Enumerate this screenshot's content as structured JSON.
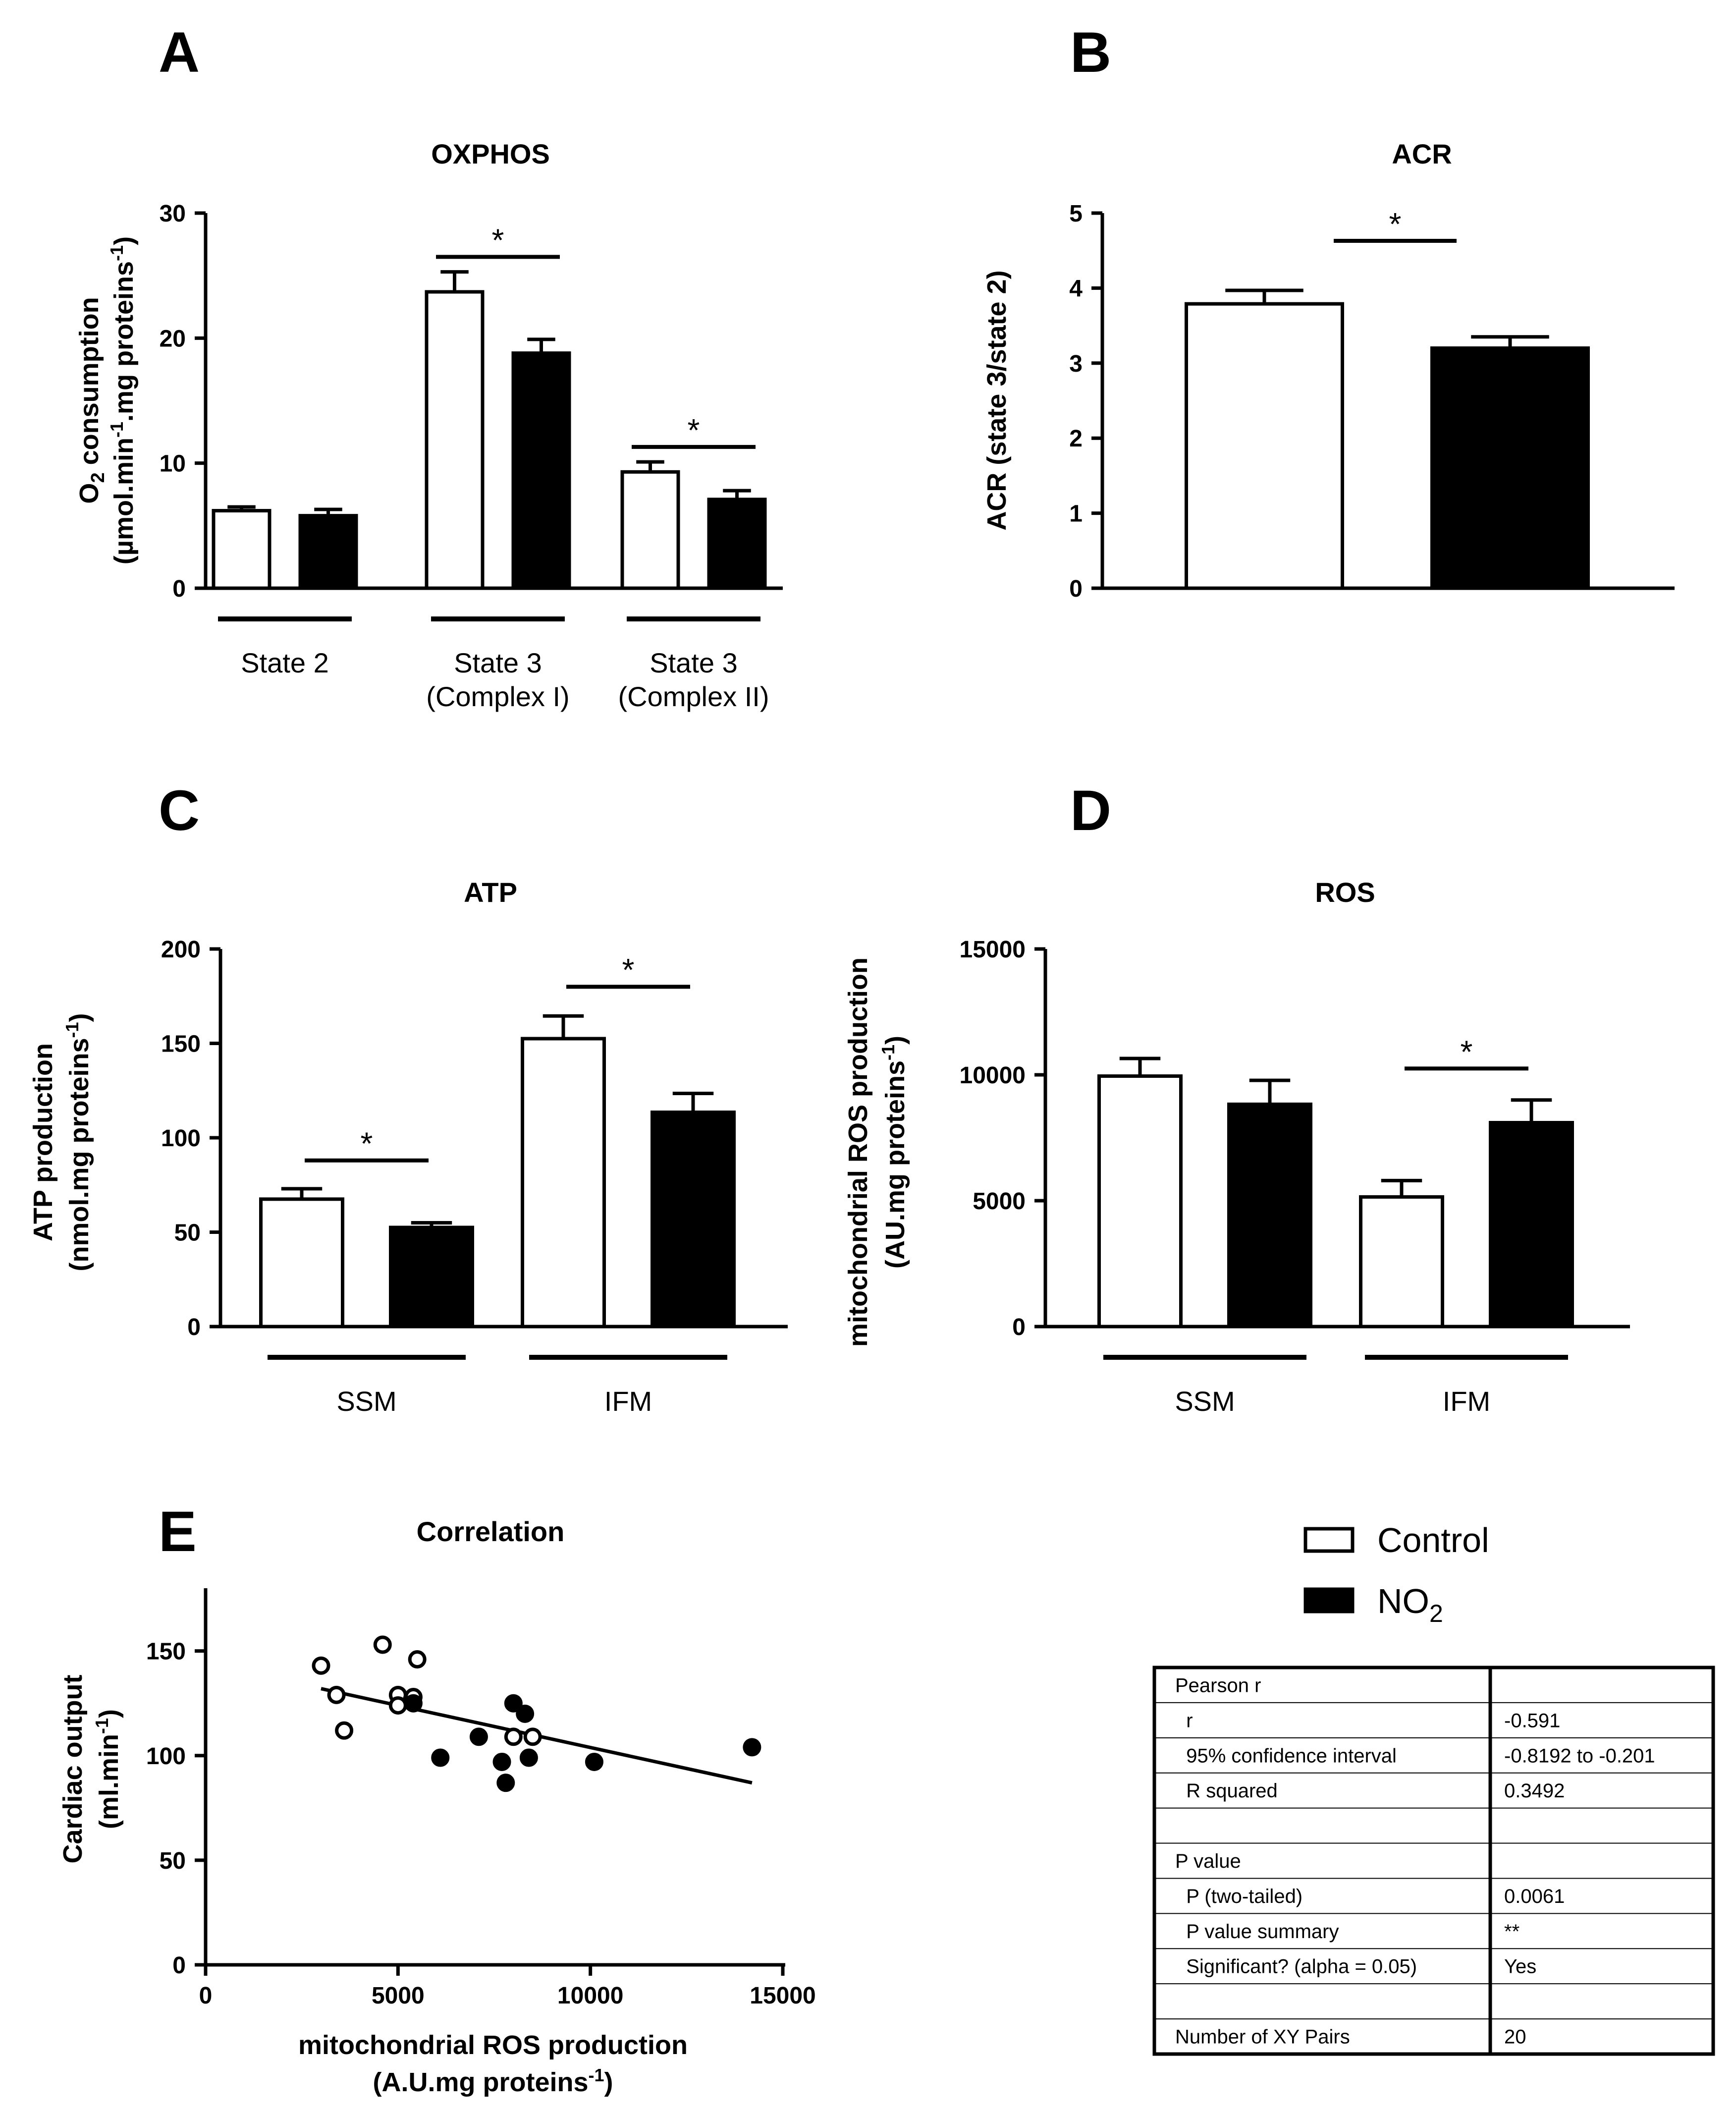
{
  "panel_labels": [
    "A",
    "B",
    "C",
    "D",
    "E"
  ],
  "legend": {
    "items": [
      {
        "name": "Control",
        "fill": "#ffffff"
      },
      {
        "name": "NO2",
        "base": "NO",
        "sub": "2",
        "fill": "#000000"
      }
    ]
  },
  "colors": {
    "stroke": "#000000",
    "control": "#ffffff",
    "no2": "#000000"
  },
  "chart_data": [
    {
      "panel": "A",
      "type": "bar",
      "title": "OXPHOS",
      "ylabel": {
        "line1_base": "O",
        "line1_sub": "2",
        "line1_rest": " consumption",
        "line2_pre": "(µmol.min",
        "line2_sup1": "-1",
        "line2_mid": ".mg proteins",
        "line2_sup2": "-1",
        "line2_end": ")"
      },
      "ylim": [
        0,
        30
      ],
      "yticks": [
        "0",
        "10",
        "20",
        "30"
      ],
      "groups": [
        {
          "label": [
            "State 2"
          ],
          "control": 6.2,
          "control_err": 0.3,
          "no2": 5.8,
          "no2_err": 0.5
        },
        {
          "label": [
            "State 3",
            "(Complex I)"
          ],
          "control": 23.7,
          "control_err": 1.6,
          "no2": 18.8,
          "no2_err": 1.1
        },
        {
          "label": [
            "State 3",
            "(Complex II)"
          ],
          "control": 9.3,
          "control_err": 0.8,
          "no2": 7.1,
          "no2_err": 0.7
        }
      ],
      "significance": [
        {
          "group": 1,
          "y": 26.5,
          "mark": "*"
        },
        {
          "group": 2,
          "y": 11.3,
          "mark": "*"
        }
      ]
    },
    {
      "panel": "B",
      "type": "bar",
      "title": "ACR",
      "ylabel": {
        "text": "ACR (state 3/state 2)"
      },
      "ylim": [
        0,
        5
      ],
      "yticks": [
        "0",
        "1",
        "2",
        "3",
        "4",
        "5"
      ],
      "bars": [
        {
          "series": "Control",
          "value": 3.79,
          "err": 0.18
        },
        {
          "series": "NO2",
          "value": 3.2,
          "err": 0.15
        }
      ],
      "significance": [
        {
          "y": 4.63,
          "mark": "*"
        }
      ]
    },
    {
      "panel": "C",
      "type": "bar",
      "title": "ATP",
      "ylabel": {
        "line1": "ATP production",
        "line2_pre": "(nmol.mg proteins",
        "line2_sup": "-1",
        "line2_end": ")"
      },
      "ylim": [
        0,
        200
      ],
      "yticks": [
        "0",
        "50",
        "100",
        "150",
        "200"
      ],
      "groups": [
        {
          "label": [
            "SSM"
          ],
          "control": 67.5,
          "control_err": 5.5,
          "no2": 52.5,
          "no2_err": 2.5
        },
        {
          "label": [
            "IFM"
          ],
          "control": 152.5,
          "control_err": 12,
          "no2": 113.5,
          "no2_err": 10
        }
      ],
      "significance": [
        {
          "group": 0,
          "y": 88,
          "mark": "*"
        },
        {
          "group": 1,
          "y": 180,
          "mark": "*"
        }
      ]
    },
    {
      "panel": "D",
      "type": "bar",
      "title": "ROS",
      "ylabel": {
        "line1": "mitochondrial ROS production",
        "line2_pre": "(AU.mg proteins",
        "line2_sup": "-1",
        "line2_end": ")"
      },
      "ylim": [
        0,
        15000
      ],
      "yticks": [
        "0",
        "5000",
        "10000",
        "15000"
      ],
      "groups": [
        {
          "label": [
            "SSM"
          ],
          "control": 9950,
          "control_err": 700,
          "no2": 8830,
          "no2_err": 950
        },
        {
          "label": [
            "IFM"
          ],
          "control": 5150,
          "control_err": 650,
          "no2": 8100,
          "no2_err": 900
        }
      ],
      "significance": [
        {
          "group": 1,
          "y": 10250,
          "mark": "*"
        }
      ]
    },
    {
      "panel": "E",
      "type": "scatter",
      "title": "Correlation",
      "xlabel": {
        "line1": "mitochondrial ROS production",
        "line2_pre": "(A.U.mg proteins",
        "line2_sup": "-1",
        "line2_end": ")"
      },
      "ylabel": {
        "line1": "Cardiac output",
        "line2_pre": "(ml.min",
        "line2_sup": "-1",
        "line2_end": ")"
      },
      "xlim": [
        0,
        15000
      ],
      "ylim": [
        0,
        180
      ],
      "xticks": [
        "0",
        "5000",
        "10000",
        "15000"
      ],
      "yticks": [
        "0",
        "50",
        "100",
        "150"
      ],
      "series": [
        {
          "name": "Control",
          "points": [
            [
              3000,
              143
            ],
            [
              3400,
              129
            ],
            [
              3600,
              112
            ],
            [
              4600,
              153
            ],
            [
              5000,
              129
            ],
            [
              5000,
              124
            ],
            [
              5400,
              128
            ],
            [
              5500,
              146
            ],
            [
              8000,
              109
            ],
            [
              8500,
              109
            ]
          ]
        },
        {
          "name": "NO2",
          "points": [
            [
              5400,
              125
            ],
            [
              6100,
              99
            ],
            [
              7100,
              109
            ],
            [
              7700,
              97
            ],
            [
              7800,
              87
            ],
            [
              8000,
              125
            ],
            [
              8300,
              120
            ],
            [
              8400,
              99
            ],
            [
              10100,
              97
            ],
            [
              14200,
              104
            ]
          ]
        }
      ],
      "fit_line": {
        "x": [
          3000,
          14200
        ],
        "y": [
          132,
          87
        ]
      }
    }
  ],
  "stats_table": {
    "rows": [
      {
        "label": "Pearson r",
        "value": ""
      },
      {
        "label": "  r",
        "value": "-0.591"
      },
      {
        "label": "  95% confidence interval",
        "value": "-0.8192 to -0.201"
      },
      {
        "label": "  R squared",
        "value": "0.3492"
      },
      {
        "label": "",
        "value": ""
      },
      {
        "label": "P value",
        "value": ""
      },
      {
        "label": "  P (two-tailed)",
        "value": "0.0061"
      },
      {
        "label": "  P value summary",
        "value": "**"
      },
      {
        "label": "  Significant? (alpha = 0.05)",
        "value": "Yes"
      },
      {
        "label": "",
        "value": ""
      },
      {
        "label": "Number of XY Pairs",
        "value": "20"
      }
    ]
  }
}
